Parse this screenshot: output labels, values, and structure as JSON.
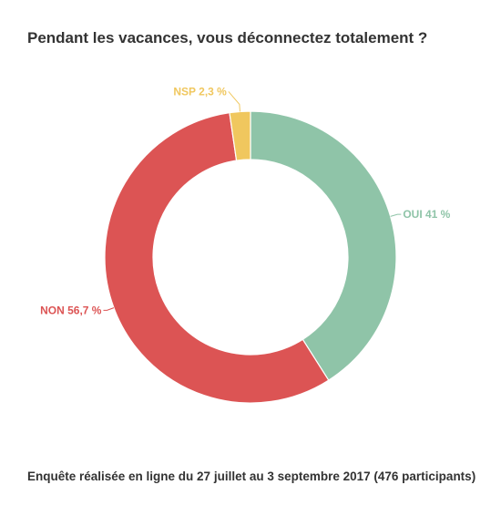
{
  "title": "Pendant les vacances, vous déconnectez totalement ?",
  "footer": "Enquête réalisée en ligne du 27 juillet au 3 septembre 2017 (476 participants)",
  "chart_data": {
    "type": "pie",
    "donut": true,
    "slices": [
      {
        "name": "OUI",
        "value": 41,
        "label": "OUI 41 %",
        "color": "#8fc4a8"
      },
      {
        "name": "NON",
        "value": 56.7,
        "label": "NON 56,7 %",
        "color": "#dc5454"
      },
      {
        "name": "NSP",
        "value": 2.3,
        "label": "NSP 2,3 %",
        "color": "#f0c75e"
      }
    ]
  }
}
